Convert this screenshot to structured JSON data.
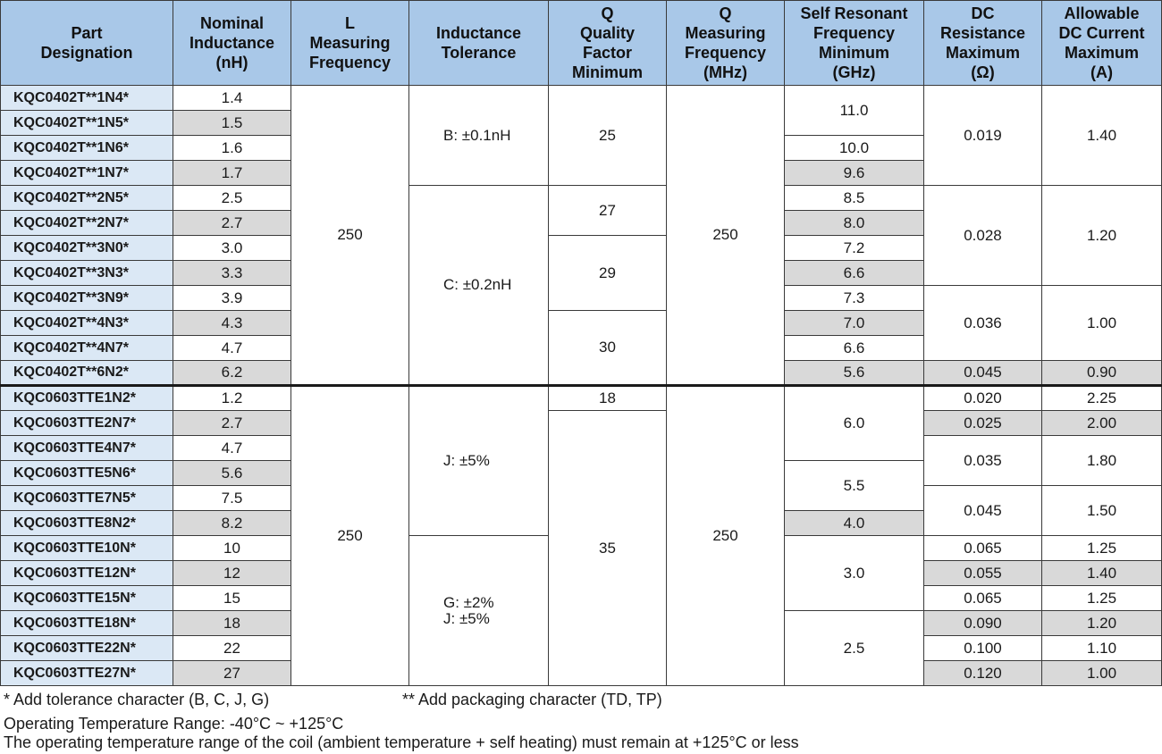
{
  "headers": {
    "part": "Part\nDesignation",
    "nominal": "Nominal\nInductance\n(nH)",
    "l_freq": "L\nMeasuring\nFrequency",
    "tol": "Inductance\nTolerance",
    "q_min": "Q\nQuality\nFactor\nMinimum",
    "q_freq": "Q\nMeasuring\nFrequency\n(MHz)",
    "srf": "Self Resonant\nFrequency\nMinimum\n(GHz)",
    "dcr": "DC\nResistance\nMaximum\n(Ω)",
    "idc": "Allowable\nDC Current\nMaximum\n(A)"
  },
  "parts": [
    "KQC0402T**1N4*",
    "KQC0402T**1N5*",
    "KQC0402T**1N6*",
    "KQC0402T**1N7*",
    "KQC0402T**2N5*",
    "KQC0402T**2N7*",
    "KQC0402T**3N0*",
    "KQC0402T**3N3*",
    "KQC0402T**3N9*",
    "KQC0402T**4N3*",
    "KQC0402T**4N7*",
    "KQC0402T**6N2*",
    "KQC0603TTE1N2*",
    "KQC0603TTE2N7*",
    "KQC0603TTE4N7*",
    "KQC0603TTE5N6*",
    "KQC0603TTE7N5*",
    "KQC0603TTE8N2*",
    "KQC0603TTE10N*",
    "KQC0603TTE12N*",
    "KQC0603TTE15N*",
    "KQC0603TTE18N*",
    "KQC0603TTE22N*",
    "KQC0603TTE27N*"
  ],
  "nominal": [
    "1.4",
    "1.5",
    "1.6",
    "1.7",
    "2.5",
    "2.7",
    "3.0",
    "3.3",
    "3.9",
    "4.3",
    "4.7",
    "6.2",
    "1.2",
    "2.7",
    "4.7",
    "5.6",
    "7.5",
    "8.2",
    "10",
    "12",
    "15",
    "18",
    "22",
    "27"
  ],
  "l_freq": [
    "250",
    "250"
  ],
  "tolerance": [
    "B: ±0.1nH",
    "C: ±0.2nH",
    "J:  ±5%",
    "G: ±2%\nJ:  ±5%"
  ],
  "q_min": [
    "25",
    "27",
    "29",
    "30",
    "18",
    "35"
  ],
  "q_freq": [
    "250",
    "250"
  ],
  "srf": [
    "11.0",
    "10.0",
    "9.6",
    "8.5",
    "8.0",
    "7.2",
    "6.6",
    "7.3",
    "7.0",
    "6.6",
    "5.6",
    "6.0",
    "5.5",
    "4.0",
    "3.0",
    "2.5"
  ],
  "dcr": [
    "0.019",
    "0.028",
    "0.036",
    "0.045",
    "0.020",
    "0.025",
    "0.035",
    "0.045",
    "0.065",
    "0.055",
    "0.065",
    "0.090",
    "0.100",
    "0.120"
  ],
  "idc": [
    "1.40",
    "1.20",
    "1.00",
    "0.90",
    "2.25",
    "2.00",
    "1.80",
    "1.50",
    "1.25",
    "1.40",
    "1.25",
    "1.20",
    "1.10",
    "1.00"
  ],
  "notes": {
    "star": "*   Add tolerance character (B, C, J, G)",
    "double_star": "**  Add packaging character (TD, TP)",
    "temp_range": "Operating Temperature Range: -40°C ~ +125°C",
    "temp_note": "The operating temperature range of the coil (ambient temperature + self heating) must remain at +125°C or less"
  }
}
